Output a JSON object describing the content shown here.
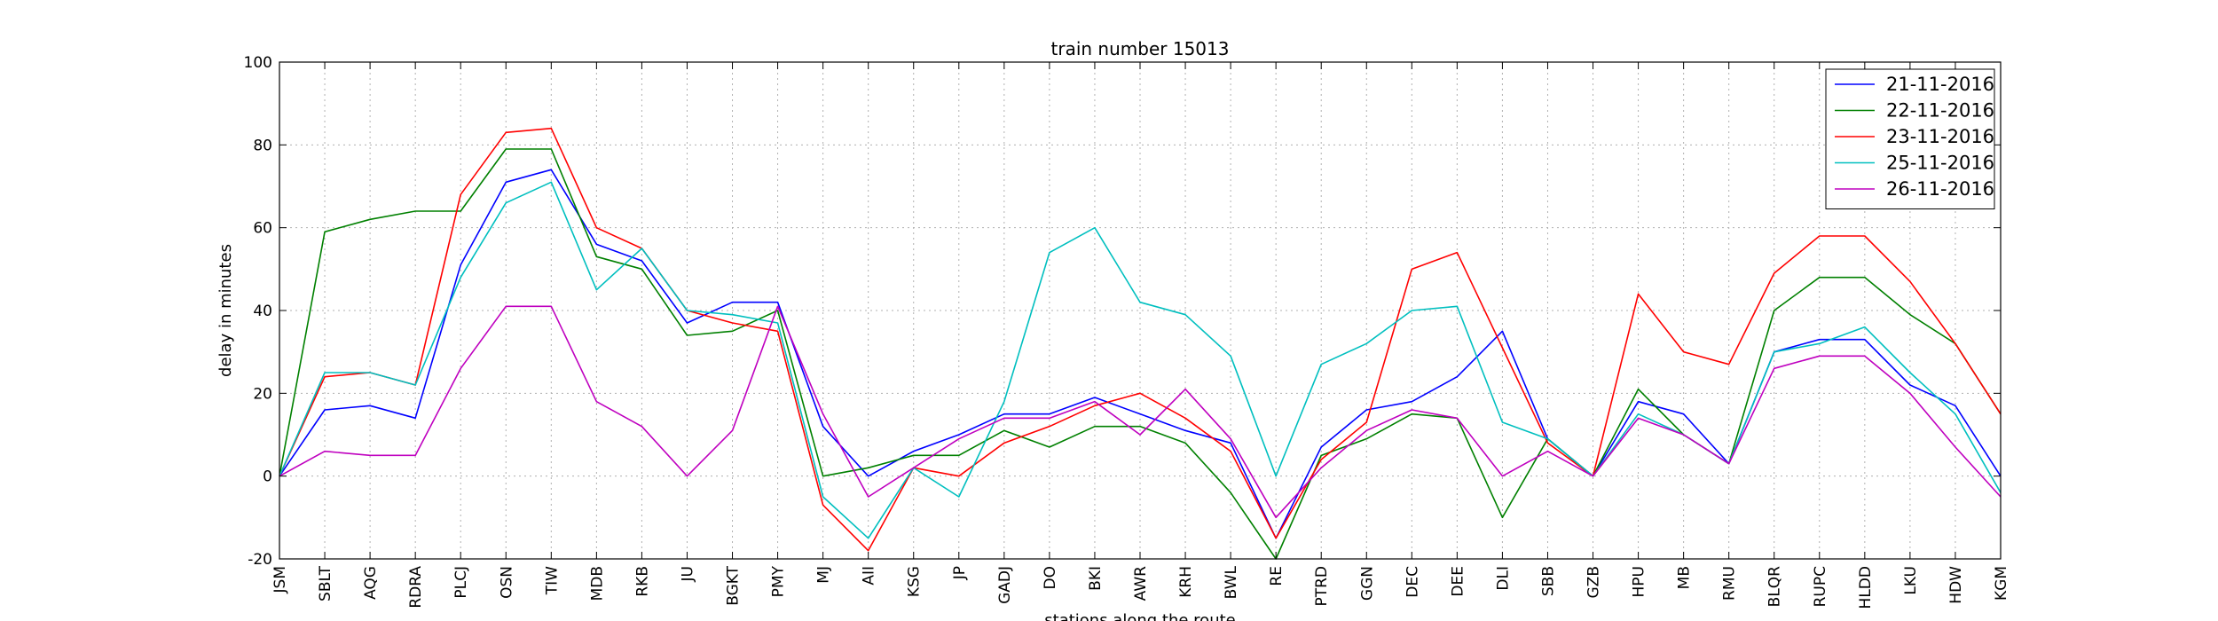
{
  "chart_data": {
    "type": "line",
    "title": "train number 15013",
    "xlabel": "stations along the route",
    "ylabel": "delay in minutes",
    "ylim": [
      -20,
      100
    ],
    "yticks": [
      -20,
      0,
      20,
      40,
      60,
      80,
      100
    ],
    "grid": true,
    "legend_position": "top-right",
    "categories": [
      "JSM",
      "SBLT",
      "AQG",
      "RDRA",
      "PLCJ",
      "OSN",
      "TIW",
      "MDB",
      "RKB",
      "JU",
      "BGKT",
      "PMY",
      "MJ",
      "AII",
      "KSG",
      "JP",
      "GADJ",
      "DO",
      "BKI",
      "AWR",
      "KRH",
      "BWL",
      "RE",
      "PTRD",
      "GGN",
      "DEC",
      "DEE",
      "DLI",
      "SBB",
      "GZB",
      "HPU",
      "MB",
      "RMU",
      "BLQR",
      "RUPC",
      "HLDD",
      "LKU",
      "HDW",
      "KGM"
    ],
    "series": [
      {
        "name": "21-11-2016",
        "color": "#0000ff",
        "values": [
          0,
          16,
          17,
          14,
          51,
          71,
          74,
          56,
          52,
          37,
          42,
          42,
          12,
          0,
          6,
          10,
          15,
          15,
          19,
          15,
          11,
          8,
          -15,
          7,
          16,
          18,
          24,
          35,
          9,
          0,
          18,
          15,
          3,
          30,
          33,
          33,
          22,
          17,
          0
        ]
      },
      {
        "name": "22-11-2016",
        "color": "#008000",
        "values": [
          0,
          59,
          62,
          64,
          64,
          79,
          79,
          53,
          50,
          34,
          35,
          40,
          0,
          2,
          5,
          5,
          11,
          7,
          12,
          12,
          8,
          -4,
          -20,
          5,
          9,
          15,
          14,
          -10,
          9,
          0,
          21,
          10,
          3,
          40,
          48,
          48,
          39,
          32,
          15
        ]
      },
      {
        "name": "23-11-2016",
        "color": "#ff0000",
        "values": [
          0,
          24,
          25,
          22,
          68,
          83,
          84,
          60,
          55,
          40,
          37,
          35,
          -7,
          -18,
          2,
          0,
          8,
          12,
          17,
          20,
          14,
          6,
          -15,
          4,
          13,
          50,
          54,
          31,
          8,
          0,
          44,
          30,
          27,
          49,
          58,
          58,
          47,
          32,
          15
        ]
      },
      {
        "name": "25-11-2016",
        "color": "#00bfbf",
        "values": [
          0,
          25,
          25,
          22,
          48,
          66,
          71,
          45,
          55,
          40,
          39,
          37,
          -5,
          -15,
          2,
          -5,
          18,
          54,
          60,
          42,
          39,
          29,
          0,
          27,
          32,
          40,
          41,
          13,
          9,
          0,
          15,
          10,
          3,
          30,
          32,
          36,
          25,
          15,
          -4
        ]
      },
      {
        "name": "26-11-2016",
        "color": "#bf00bf",
        "values": [
          0,
          6,
          5,
          5,
          26,
          41,
          41,
          18,
          12,
          0,
          11,
          41,
          15,
          -5,
          2,
          9,
          14,
          14,
          18,
          10,
          21,
          9,
          -10,
          2,
          11,
          16,
          14,
          0,
          6,
          0,
          14,
          10,
          3,
          26,
          29,
          29,
          20,
          7,
          -5
        ]
      }
    ]
  }
}
